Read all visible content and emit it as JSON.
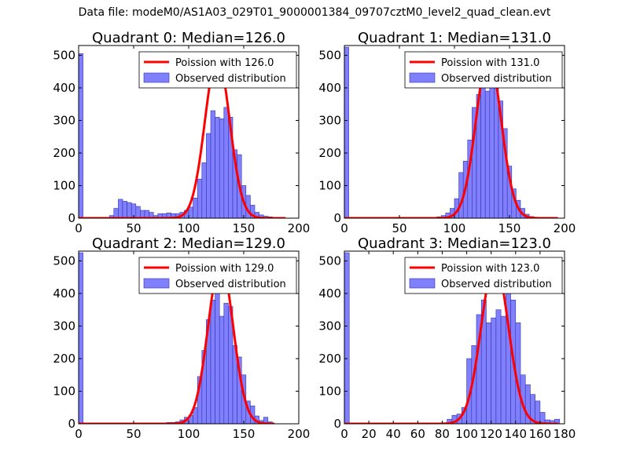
{
  "figure": {
    "suptitle": "Data file: modeM0/AS1A03_029T01_9000001384_09707cztM0_level2_quad_clean.evt"
  },
  "colors": {
    "hist_fill": "#8080ff",
    "hist_edge": "#3333aa",
    "curve": "#ff0000"
  },
  "chart_data": [
    {
      "type": "bar",
      "title": "Quadrant 0: Median=126.0",
      "xlim": [
        0,
        200
      ],
      "ylim": [
        0,
        530
      ],
      "xticks": [
        0,
        50,
        100,
        150,
        200
      ],
      "yticks": [
        0,
        100,
        200,
        300,
        400,
        500
      ],
      "legend": [
        "Poission with 126.0",
        "Observed distribution"
      ],
      "legend_position": "top-right",
      "bin_width": 4,
      "bins": [
        {
          "x": 0,
          "y": 505
        },
        {
          "x": 28,
          "y": 8
        },
        {
          "x": 32,
          "y": 30
        },
        {
          "x": 36,
          "y": 58
        },
        {
          "x": 40,
          "y": 52
        },
        {
          "x": 44,
          "y": 48
        },
        {
          "x": 48,
          "y": 44
        },
        {
          "x": 52,
          "y": 36
        },
        {
          "x": 56,
          "y": 24
        },
        {
          "x": 60,
          "y": 24
        },
        {
          "x": 64,
          "y": 18
        },
        {
          "x": 68,
          "y": 8
        },
        {
          "x": 72,
          "y": 14
        },
        {
          "x": 76,
          "y": 14
        },
        {
          "x": 80,
          "y": 16
        },
        {
          "x": 84,
          "y": 14
        },
        {
          "x": 88,
          "y": 14
        },
        {
          "x": 92,
          "y": 18
        },
        {
          "x": 96,
          "y": 24
        },
        {
          "x": 100,
          "y": 34
        },
        {
          "x": 104,
          "y": 62
        },
        {
          "x": 108,
          "y": 120
        },
        {
          "x": 112,
          "y": 170
        },
        {
          "x": 116,
          "y": 260
        },
        {
          "x": 120,
          "y": 330
        },
        {
          "x": 124,
          "y": 310
        },
        {
          "x": 128,
          "y": 305
        },
        {
          "x": 132,
          "y": 340
        },
        {
          "x": 136,
          "y": 310
        },
        {
          "x": 140,
          "y": 210
        },
        {
          "x": 144,
          "y": 195
        },
        {
          "x": 148,
          "y": 100
        },
        {
          "x": 152,
          "y": 70
        },
        {
          "x": 156,
          "y": 40
        },
        {
          "x": 160,
          "y": 18
        },
        {
          "x": 164,
          "y": 10
        },
        {
          "x": 168,
          "y": 6
        },
        {
          "x": 172,
          "y": 4
        }
      ],
      "curve": {
        "mean": 126.0,
        "peak": 495,
        "x_range": [
          0,
          188
        ]
      }
    },
    {
      "type": "bar",
      "title": "Quadrant 1: Median=131.0",
      "xlim": [
        0,
        200
      ],
      "ylim": [
        0,
        530
      ],
      "xticks": [
        0,
        50,
        100,
        150,
        200
      ],
      "yticks": [
        0,
        100,
        200,
        300,
        400,
        500
      ],
      "legend": [
        "Poission with 131.0",
        "Observed distribution"
      ],
      "legend_position": "top-right",
      "bin_width": 4,
      "bins": [
        {
          "x": 0,
          "y": 525
        },
        {
          "x": 84,
          "y": 4
        },
        {
          "x": 88,
          "y": 8
        },
        {
          "x": 92,
          "y": 16
        },
        {
          "x": 96,
          "y": 30
        },
        {
          "x": 100,
          "y": 60
        },
        {
          "x": 104,
          "y": 140
        },
        {
          "x": 108,
          "y": 175
        },
        {
          "x": 112,
          "y": 240
        },
        {
          "x": 116,
          "y": 340
        },
        {
          "x": 120,
          "y": 380
        },
        {
          "x": 124,
          "y": 420
        },
        {
          "x": 128,
          "y": 390
        },
        {
          "x": 132,
          "y": 440
        },
        {
          "x": 136,
          "y": 420
        },
        {
          "x": 140,
          "y": 360
        },
        {
          "x": 144,
          "y": 275
        },
        {
          "x": 148,
          "y": 160
        },
        {
          "x": 152,
          "y": 90
        },
        {
          "x": 156,
          "y": 55
        },
        {
          "x": 160,
          "y": 30
        },
        {
          "x": 164,
          "y": 12
        },
        {
          "x": 168,
          "y": 5
        }
      ],
      "curve": {
        "mean": 131.0,
        "peak": 498,
        "x_range": [
          0,
          194
        ]
      }
    },
    {
      "type": "bar",
      "title": "Quadrant 2: Median=129.0",
      "xlim": [
        0,
        200
      ],
      "ylim": [
        0,
        530
      ],
      "xticks": [
        0,
        50,
        100,
        150,
        200
      ],
      "yticks": [
        0,
        100,
        200,
        300,
        400,
        500
      ],
      "legend": [
        "Poission with 129.0",
        "Observed distribution"
      ],
      "legend_position": "top-right",
      "bin_width": 4,
      "bins": [
        {
          "x": 0,
          "y": 525
        },
        {
          "x": 80,
          "y": 4
        },
        {
          "x": 84,
          "y": 4
        },
        {
          "x": 88,
          "y": 6
        },
        {
          "x": 92,
          "y": 12
        },
        {
          "x": 96,
          "y": 20
        },
        {
          "x": 100,
          "y": 26
        },
        {
          "x": 104,
          "y": 50
        },
        {
          "x": 108,
          "y": 145
        },
        {
          "x": 112,
          "y": 225
        },
        {
          "x": 116,
          "y": 320
        },
        {
          "x": 120,
          "y": 380
        },
        {
          "x": 124,
          "y": 405
        },
        {
          "x": 128,
          "y": 330
        },
        {
          "x": 132,
          "y": 370
        },
        {
          "x": 136,
          "y": 360
        },
        {
          "x": 140,
          "y": 240
        },
        {
          "x": 144,
          "y": 205
        },
        {
          "x": 148,
          "y": 150
        },
        {
          "x": 152,
          "y": 70
        },
        {
          "x": 156,
          "y": 55
        },
        {
          "x": 160,
          "y": 24
        },
        {
          "x": 164,
          "y": 10
        },
        {
          "x": 168,
          "y": 20
        },
        {
          "x": 172,
          "y": 6
        }
      ],
      "curve": {
        "mean": 129.0,
        "peak": 495,
        "x_range": [
          0,
          178
        ]
      }
    },
    {
      "type": "bar",
      "title": "Quadrant 3: Median=123.0",
      "xlim": [
        0,
        180
      ],
      "ylim": [
        0,
        530
      ],
      "xticks": [
        0,
        20,
        40,
        60,
        80,
        100,
        120,
        140,
        160,
        180
      ],
      "yticks": [
        0,
        100,
        200,
        300,
        400,
        500
      ],
      "legend": [
        "Poission with 123.0",
        "Observed distribution"
      ],
      "legend_position": "top-right",
      "bin_width": 4,
      "bins": [
        {
          "x": 0,
          "y": 525
        },
        {
          "x": 84,
          "y": 14
        },
        {
          "x": 88,
          "y": 26
        },
        {
          "x": 92,
          "y": 30
        },
        {
          "x": 96,
          "y": 50
        },
        {
          "x": 100,
          "y": 200
        },
        {
          "x": 104,
          "y": 240
        },
        {
          "x": 108,
          "y": 335
        },
        {
          "x": 112,
          "y": 380
        },
        {
          "x": 116,
          "y": 310
        },
        {
          "x": 120,
          "y": 325
        },
        {
          "x": 124,
          "y": 350
        },
        {
          "x": 128,
          "y": 330
        },
        {
          "x": 132,
          "y": 450
        },
        {
          "x": 136,
          "y": 380
        },
        {
          "x": 140,
          "y": 310
        },
        {
          "x": 144,
          "y": 150
        },
        {
          "x": 148,
          "y": 120
        },
        {
          "x": 152,
          "y": 90
        },
        {
          "x": 156,
          "y": 70
        },
        {
          "x": 160,
          "y": 35
        },
        {
          "x": 164,
          "y": 12
        },
        {
          "x": 168,
          "y": 10
        },
        {
          "x": 172,
          "y": 14
        }
      ],
      "curve": {
        "mean": 123.0,
        "peak": 495,
        "x_range": [
          0,
          175
        ]
      }
    }
  ]
}
